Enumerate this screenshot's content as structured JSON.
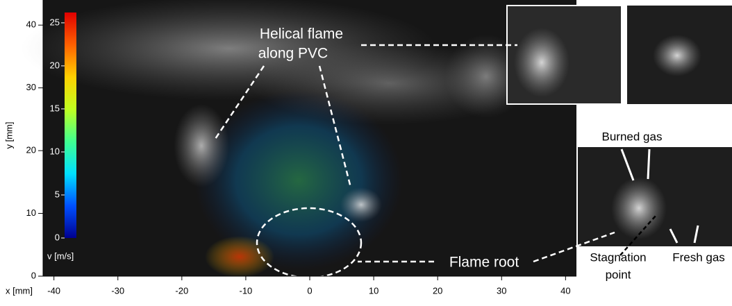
{
  "chart_data": {
    "type": "image",
    "xlabel": "x [mm]",
    "ylabel": "y [mm]",
    "xlim": [
      -41.7,
      41.7
    ],
    "ylim": [
      0,
      44
    ],
    "xticks": [
      -40,
      -30,
      -20,
      -10,
      0,
      10,
      20,
      30,
      40
    ],
    "yticks": [
      0,
      10,
      20,
      30,
      40
    ],
    "colorbar": {
      "label": "v [m/s]",
      "lim": [
        0,
        26.2
      ],
      "ticks": [
        0,
        5,
        10,
        15,
        20,
        25
      ],
      "colors": [
        "#00008f",
        "#0050ff",
        "#00e0ff",
        "#40ff90",
        "#c0ff20",
        "#ffd000",
        "#ff6000",
        "#e00000"
      ]
    },
    "annotations": [
      "Helical flame",
      "along PVC",
      "Flame root",
      "Burned gas",
      "Stagnation",
      "point",
      "Fresh gas"
    ]
  }
}
